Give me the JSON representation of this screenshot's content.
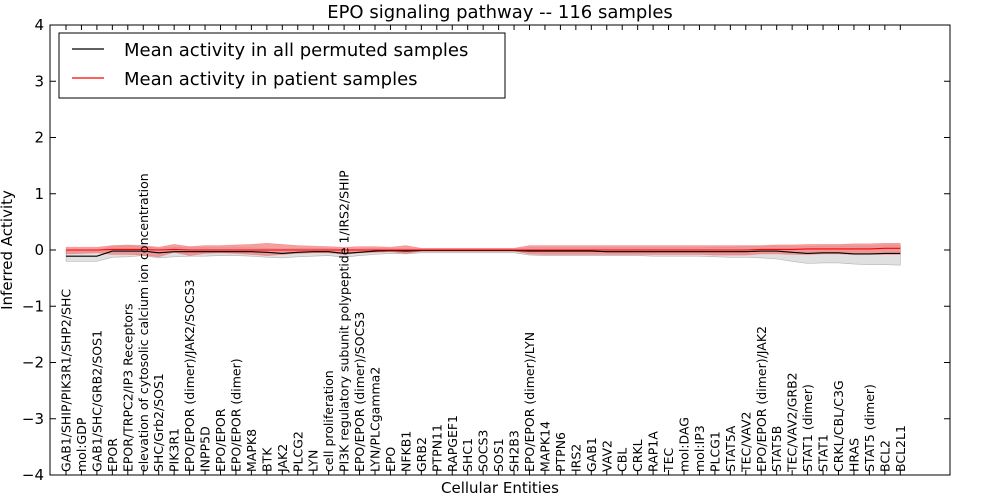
{
  "chart_data": {
    "type": "line",
    "title": "EPO signaling pathway -- 116 samples",
    "xlabel": "Cellular Entities",
    "ylabel": "Inferred Activity",
    "ylim": [
      -4,
      4
    ],
    "yticks": [
      -4,
      -3,
      -2,
      -1,
      0,
      1,
      2,
      3,
      4
    ],
    "ytick_labels": [
      "−4",
      "−3",
      "−2",
      "−1",
      "0",
      "1",
      "2",
      "3",
      "4"
    ],
    "legend_position": "top-left",
    "categories": [
      "GAB1/SHIP/PIK3R1/SHP2/SHC",
      "mol:GDP",
      "GAB1/SHC/GRB2/SOS1",
      "EPOR",
      "EPOR/TRPC2/IP3 Receptors",
      "elevation of cytosolic calcium ion concentration",
      "SHC/Grb2/SOS1",
      "PIK3R1",
      "EPO/EPOR (dimer)/JAK2/SOCS3",
      "INPP5D",
      "EPO/EPOR",
      "EPO/EPOR (dimer)",
      "MAPK8",
      "BTK",
      "JAK2",
      "PLCG2",
      "LYN",
      "cell proliferation",
      "PI3K regulatory subunit polypeptide 1/IRS2/SHIP",
      "EPO/EPOR (dimer)/SOCS3",
      "LYN/PLCgamma2",
      "EPO",
      "NFKB1",
      "GRB2",
      "PTPN11",
      "RAPGEF1",
      "SHC1",
      "SOCS3",
      "SOS1",
      "SH2B3",
      "EPO/EPOR (dimer)/LYN",
      "MAPK14",
      "PTPN6",
      "IRS2",
      "GAB1",
      "VAV2",
      "CBL",
      "CRKL",
      "RAP1A",
      "TEC",
      "mol:DAG",
      "mol:IP3",
      "PLCG1",
      "STAT5A",
      "TEC/VAV2",
      "EPO/EPOR (dimer)/JAK2",
      "STAT5B",
      "TEC/VAV2/GRB2",
      "STAT1 (dimer)",
      "STAT1",
      "CRKL/CBL/C3G",
      "HRAS",
      "STAT5 (dimer)",
      "BCL2",
      "BCL2L1"
    ],
    "series": [
      {
        "name": "Mean activity in all permuted samples",
        "color": "#000000",
        "band_color": "#bbbbbb",
        "values": [
          -0.11,
          -0.11,
          -0.11,
          -0.02,
          -0.02,
          -0.02,
          -0.05,
          -0.03,
          -0.03,
          -0.03,
          -0.03,
          -0.03,
          -0.03,
          -0.04,
          -0.06,
          -0.04,
          -0.03,
          -0.03,
          -0.06,
          -0.04,
          -0.02,
          -0.01,
          -0.02,
          -0.01,
          -0.01,
          -0.01,
          -0.01,
          -0.01,
          -0.01,
          -0.01,
          -0.02,
          -0.02,
          -0.02,
          -0.02,
          -0.02,
          -0.03,
          -0.03,
          -0.03,
          -0.03,
          -0.03,
          -0.03,
          -0.03,
          -0.03,
          -0.03,
          -0.03,
          -0.02,
          -0.02,
          -0.04,
          -0.06,
          -0.05,
          -0.05,
          -0.07,
          -0.07,
          -0.06,
          -0.06
        ],
        "lower": [
          -0.2,
          -0.2,
          -0.2,
          -0.13,
          -0.12,
          -0.1,
          -0.14,
          -0.12,
          -0.11,
          -0.11,
          -0.1,
          -0.1,
          -0.11,
          -0.13,
          -0.14,
          -0.12,
          -0.11,
          -0.1,
          -0.13,
          -0.1,
          -0.08,
          -0.06,
          -0.07,
          -0.05,
          -0.05,
          -0.05,
          -0.05,
          -0.05,
          -0.05,
          -0.05,
          -0.09,
          -0.1,
          -0.1,
          -0.1,
          -0.1,
          -0.1,
          -0.1,
          -0.1,
          -0.11,
          -0.11,
          -0.11,
          -0.11,
          -0.12,
          -0.13,
          -0.13,
          -0.14,
          -0.16,
          -0.2,
          -0.24,
          -0.23,
          -0.23,
          -0.25,
          -0.26,
          -0.26,
          -0.27
        ],
        "upper": [
          -0.02,
          -0.02,
          -0.02,
          0.06,
          0.06,
          0.06,
          0.03,
          0.05,
          0.04,
          0.04,
          0.04,
          0.04,
          0.04,
          0.03,
          0.02,
          0.03,
          0.03,
          0.03,
          0.01,
          0.02,
          0.03,
          0.03,
          0.02,
          0.02,
          0.02,
          0.02,
          0.02,
          0.02,
          0.02,
          0.02,
          0.04,
          0.04,
          0.04,
          0.04,
          0.04,
          0.04,
          0.04,
          0.04,
          0.04,
          0.04,
          0.04,
          0.04,
          0.05,
          0.05,
          0.06,
          0.06,
          0.06,
          0.06,
          0.06,
          0.07,
          0.07,
          0.07,
          0.07,
          0.08,
          0.08
        ]
      },
      {
        "name": "Mean activity in patient samples",
        "color": "#ff0000",
        "band_color": "#f08080",
        "values": [
          0.0,
          0.0,
          0.0,
          0.01,
          0.01,
          0.01,
          0.0,
          0.01,
          0.0,
          0.0,
          0.0,
          0.0,
          0.0,
          0.0,
          0.0,
          0.0,
          0.0,
          0.0,
          0.0,
          0.0,
          0.0,
          0.0,
          0.0,
          0.0,
          0.0,
          0.0,
          0.0,
          0.0,
          0.0,
          0.0,
          0.0,
          0.0,
          0.0,
          0.0,
          0.0,
          0.0,
          0.0,
          0.0,
          0.0,
          0.0,
          0.0,
          0.0,
          0.0,
          0.0,
          0.0,
          0.01,
          0.01,
          0.01,
          0.02,
          0.02,
          0.02,
          0.02,
          0.02,
          0.03,
          0.03
        ],
        "lower": [
          -0.07,
          -0.06,
          -0.05,
          -0.08,
          -0.08,
          -0.09,
          -0.12,
          -0.04,
          -0.1,
          -0.06,
          -0.05,
          -0.06,
          -0.08,
          -0.1,
          -0.08,
          -0.06,
          -0.05,
          -0.05,
          -0.08,
          -0.05,
          -0.04,
          -0.03,
          -0.06,
          -0.02,
          -0.02,
          -0.02,
          -0.02,
          -0.02,
          -0.02,
          -0.02,
          -0.07,
          -0.08,
          -0.08,
          -0.08,
          -0.08,
          -0.08,
          -0.08,
          -0.08,
          -0.08,
          -0.08,
          -0.08,
          -0.08,
          -0.09,
          -0.09,
          -0.09,
          -0.07,
          -0.07,
          -0.08,
          -0.08,
          -0.07,
          -0.07,
          -0.08,
          -0.08,
          -0.08,
          -0.08
        ],
        "upper": [
          0.05,
          0.05,
          0.05,
          0.08,
          0.09,
          0.08,
          0.05,
          0.1,
          0.06,
          0.08,
          0.08,
          0.09,
          0.1,
          0.12,
          0.1,
          0.08,
          0.07,
          0.06,
          0.05,
          0.06,
          0.06,
          0.05,
          0.08,
          0.03,
          0.03,
          0.03,
          0.03,
          0.03,
          0.03,
          0.03,
          0.08,
          0.08,
          0.08,
          0.08,
          0.08,
          0.08,
          0.08,
          0.08,
          0.08,
          0.08,
          0.08,
          0.08,
          0.08,
          0.08,
          0.08,
          0.08,
          0.09,
          0.09,
          0.1,
          0.1,
          0.1,
          0.11,
          0.11,
          0.12,
          0.12
        ]
      }
    ]
  }
}
